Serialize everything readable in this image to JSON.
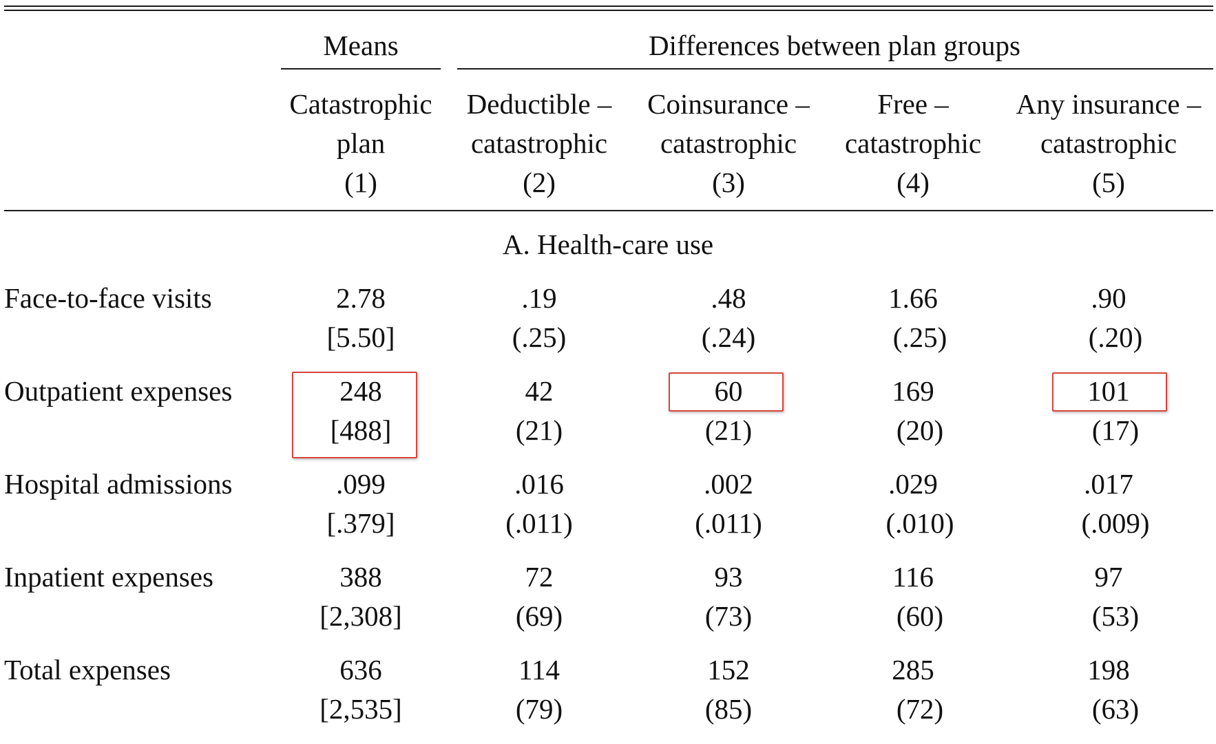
{
  "header": {
    "means_label": "Means",
    "differences_label": "Differences between plan groups",
    "columns": [
      {
        "line1": "Catastrophic",
        "line2": "plan",
        "num": "(1)"
      },
      {
        "line1": "Deductible –",
        "line2": "catastrophic",
        "num": "(2)"
      },
      {
        "line1": "Coinsurance –",
        "line2": "catastrophic",
        "num": "(3)"
      },
      {
        "line1": "Free –",
        "line2": "catastrophic",
        "num": "(4)"
      },
      {
        "line1": "Any insurance –",
        "line2": "catastrophic",
        "num": "(5)"
      }
    ]
  },
  "panel_title": "A. Health-care use",
  "rows": [
    {
      "label": "Face-to-face visits",
      "values": [
        "2.78",
        ".19",
        ".48",
        "1.66",
        ".90"
      ],
      "errors": [
        "[5.50]",
        "(.25)",
        "(.24)",
        "(.25)",
        "(.20)"
      ]
    },
    {
      "label": "Outpatient expenses",
      "values": [
        "248",
        "42",
        "60",
        "169",
        "101"
      ],
      "errors": [
        "[488]",
        "(21)",
        "(21)",
        "(20)",
        "(17)"
      ]
    },
    {
      "label": "Hospital admissions",
      "values": [
        ".099",
        ".016",
        ".002",
        ".029",
        ".017"
      ],
      "errors": [
        "[.379]",
        "(.011)",
        "(.011)",
        "(.010)",
        "(.009)"
      ]
    },
    {
      "label": "Inpatient expenses",
      "values": [
        "388",
        "72",
        "93",
        "116",
        "97"
      ],
      "errors": [
        "[2,308]",
        "(69)",
        "(73)",
        "(60)",
        "(53)"
      ]
    },
    {
      "label": "Total expenses",
      "values": [
        "636",
        "114",
        "152",
        "285",
        "198"
      ],
      "errors": [
        "[2,535]",
        "(79)",
        "(85)",
        "(72)",
        "(63)"
      ]
    }
  ],
  "highlight_color": "#d6453a"
}
